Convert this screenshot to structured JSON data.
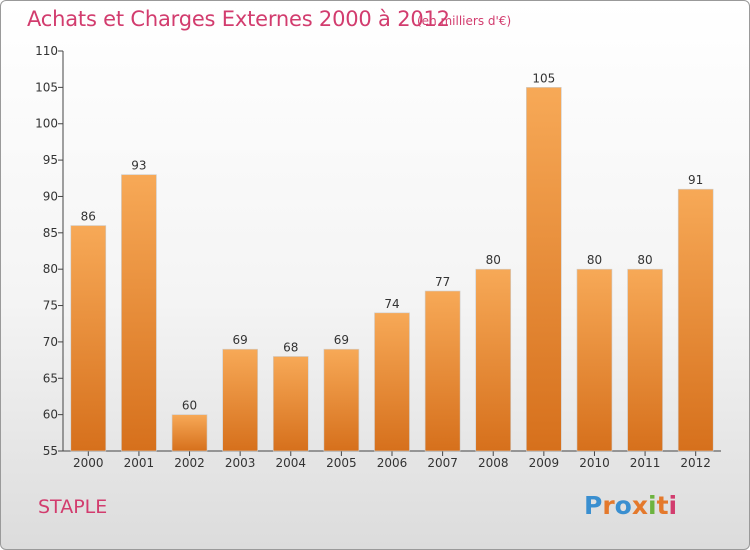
{
  "title": "Achats et Charges Externes 2000 à 2012",
  "subtitle": "(en milliers d'€)",
  "city": "STAPLE",
  "logo": {
    "letters": [
      "P",
      "r",
      "o",
      "x",
      "i",
      "t",
      "i"
    ],
    "colors": [
      "#3a8fd0",
      "#e4792c",
      "#3a8fd0",
      "#e4792c",
      "#6db33f",
      "#e4792c",
      "#d23c6e"
    ]
  },
  "chart_data": {
    "type": "bar",
    "title": "Achats et Charges Externes 2000 à 2012",
    "subtitle": "(en milliers d'€)",
    "categories": [
      "2000",
      "2001",
      "2002",
      "2003",
      "2004",
      "2005",
      "2006",
      "2007",
      "2008",
      "2009",
      "2010",
      "2011",
      "2012"
    ],
    "values": [
      86,
      93,
      60,
      69,
      68,
      69,
      74,
      77,
      80,
      105,
      80,
      80,
      91
    ],
    "ylim": [
      55,
      110
    ],
    "yticks": [
      55,
      60,
      65,
      70,
      75,
      80,
      85,
      90,
      95,
      100,
      105,
      110
    ],
    "grid": false,
    "bar_color_top": "#f7a957",
    "bar_color_bottom": "#d6701c"
  }
}
